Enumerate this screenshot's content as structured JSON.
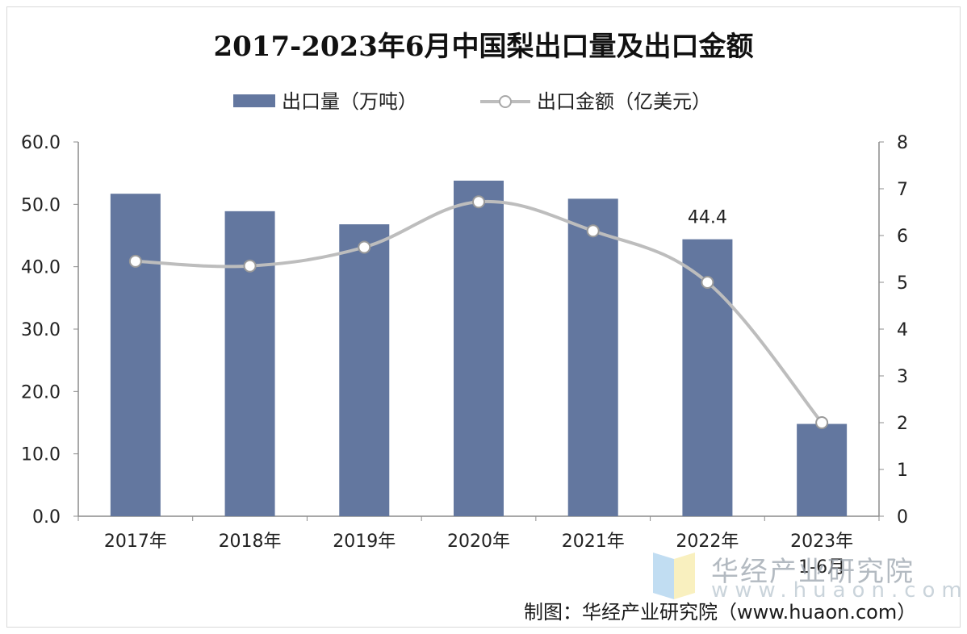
{
  "chart_data": {
    "type": "bar",
    "title": "2017-2023年6月中国梨出口量及出口金额",
    "categories": [
      "2017年",
      "2018年",
      "2019年",
      "2020年",
      "2021年",
      "2022年",
      "2023年"
    ],
    "category_sublabels": [
      "",
      "",
      "",
      "",
      "",
      "",
      "1-6月"
    ],
    "series": [
      {
        "name": "出口量（万吨）",
        "type": "bar",
        "axis": "left",
        "color": "#63779f",
        "values": [
          51.7,
          48.9,
          46.8,
          53.8,
          50.9,
          44.4,
          14.8
        ]
      },
      {
        "name": "出口金额（亿美元）",
        "type": "line",
        "axis": "right",
        "color": "#bdbdbd",
        "values": [
          5.45,
          5.35,
          5.75,
          6.72,
          6.1,
          5.0,
          2.0
        ]
      }
    ],
    "data_labels": [
      {
        "series": 0,
        "index": 5,
        "text": "44.4"
      }
    ],
    "y_left": {
      "min": 0,
      "max": 60,
      "ticks": [
        "0.0",
        "10.0",
        "20.0",
        "30.0",
        "40.0",
        "50.0",
        "60.0"
      ]
    },
    "y_right": {
      "min": 0,
      "max": 8,
      "ticks": [
        "0",
        "1",
        "2",
        "3",
        "4",
        "5",
        "6",
        "7",
        "8"
      ]
    },
    "legend_position": "top-center",
    "grid": false
  },
  "watermark": {
    "text": "华经产业研究院",
    "url": "www.huaon.com"
  },
  "credit": "制图：华经产业研究院（www.huaon.com）"
}
